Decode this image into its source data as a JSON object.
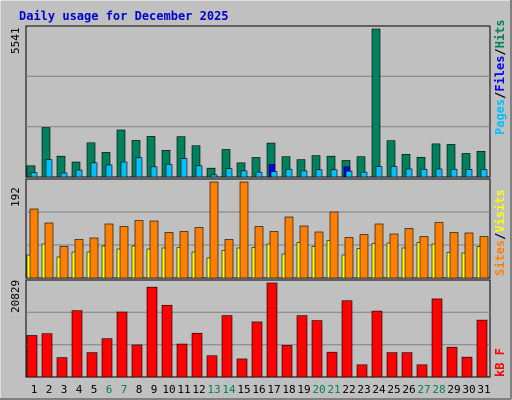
{
  "title": "Daily usage for December 2025",
  "colors": {
    "background": "#c0c0c0",
    "title": "#0000d0",
    "hits": "#00805c",
    "files": "#0000ff",
    "pages": "#00c0ff",
    "visits": "#ffff00",
    "sites": "#ff8000",
    "kbytes": "#ff0000",
    "weekend_label": "#00805c",
    "weekday_label": "#000000"
  },
  "legend": {
    "hits": "Hits",
    "files": "Files",
    "pages": "Pages",
    "sep1": "/",
    "sep2": "/",
    "visits": "Visits",
    "sites": "Sites",
    "sep3": "/",
    "kbytes": "kB F"
  },
  "chart_data": [
    {
      "type": "bar",
      "title": "Daily usage for December 2025",
      "max_label": "5541",
      "ylim": [
        0,
        5541
      ],
      "grid": true,
      "legend": "right, vertical",
      "categories": [
        "1",
        "2",
        "3",
        "4",
        "5",
        "6",
        "7",
        "8",
        "9",
        "10",
        "11",
        "12",
        "13",
        "14",
        "15",
        "16",
        "17",
        "18",
        "19",
        "20",
        "21",
        "22",
        "23",
        "24",
        "25",
        "26",
        "27",
        "28",
        "29",
        "30",
        "31"
      ],
      "series": [
        {
          "name": "Hits",
          "values": [
            420,
            1850,
            780,
            560,
            1280,
            920,
            1760,
            1370,
            1520,
            1000,
            1510,
            1170,
            330,
            1030,
            530,
            730,
            1270,
            760,
            650,
            800,
            780,
            620,
            760,
            5541,
            1360,
            850,
            740,
            1240,
            1220,
            880,
            960
          ]
        },
        {
          "name": "Files",
          "values": [
            0,
            0,
            0,
            0,
            0,
            0,
            0,
            0,
            0,
            0,
            0,
            0,
            0,
            0,
            0,
            0,
            470,
            0,
            0,
            0,
            0,
            380,
            0,
            0,
            0,
            0,
            0,
            0,
            0,
            0,
            0
          ]
        },
        {
          "name": "Pages",
          "values": [
            160,
            650,
            150,
            260,
            530,
            450,
            560,
            720,
            380,
            470,
            690,
            420,
            80,
            310,
            230,
            180,
            200,
            290,
            230,
            270,
            270,
            220,
            180,
            390,
            390,
            300,
            290,
            300,
            290,
            280,
            280
          ]
        }
      ]
    },
    {
      "type": "bar",
      "max_label": "192",
      "ylim": [
        0,
        192
      ],
      "grid": true,
      "legend": "right, vertical",
      "categories": [
        "1",
        "2",
        "3",
        "4",
        "5",
        "6",
        "7",
        "8",
        "9",
        "10",
        "11",
        "12",
        "13",
        "14",
        "15",
        "16",
        "17",
        "18",
        "19",
        "20",
        "21",
        "22",
        "23",
        "24",
        "25",
        "26",
        "27",
        "28",
        "29",
        "30",
        "31"
      ],
      "series": [
        {
          "name": "Visits",
          "values": [
            46,
            68,
            42,
            52,
            52,
            64,
            58,
            64,
            58,
            60,
            61,
            52,
            40,
            55,
            60,
            61,
            68,
            48,
            71,
            63,
            75,
            46,
            59,
            69,
            70,
            60,
            71,
            68,
            51,
            50,
            63
          ]
        },
        {
          "name": "Sites",
          "values": [
            138,
            110,
            63,
            77,
            80,
            108,
            103,
            115,
            114,
            91,
            93,
            101,
            192,
            77,
            192,
            103,
            93,
            122,
            104,
            92,
            132,
            81,
            87,
            108,
            88,
            99,
            83,
            111,
            91,
            90,
            83
          ]
        }
      ]
    },
    {
      "type": "bar",
      "max_label": "20829",
      "ylim": [
        0,
        20829
      ],
      "grid": true,
      "legend": "right, vertical",
      "categories": [
        "1",
        "2",
        "3",
        "4",
        "5",
        "6",
        "7",
        "8",
        "9",
        "10",
        "11",
        "12",
        "13",
        "14",
        "15",
        "16",
        "17",
        "18",
        "19",
        "20",
        "21",
        "22",
        "23",
        "24",
        "25",
        "26",
        "27",
        "28",
        "29",
        "30",
        "31"
      ],
      "series": [
        {
          "name": "kB F",
          "values": [
            9200,
            9600,
            4300,
            14700,
            5400,
            8500,
            14400,
            7100,
            19900,
            15900,
            7300,
            9700,
            4700,
            13600,
            4000,
            12200,
            20829,
            7000,
            13600,
            12500,
            5500,
            16900,
            2700,
            14600,
            5400,
            5400,
            2700,
            17300,
            6600,
            4400,
            12600
          ]
        }
      ]
    }
  ],
  "weekend_days": [
    "6",
    "7",
    "13",
    "14",
    "20",
    "21",
    "27",
    "28"
  ]
}
